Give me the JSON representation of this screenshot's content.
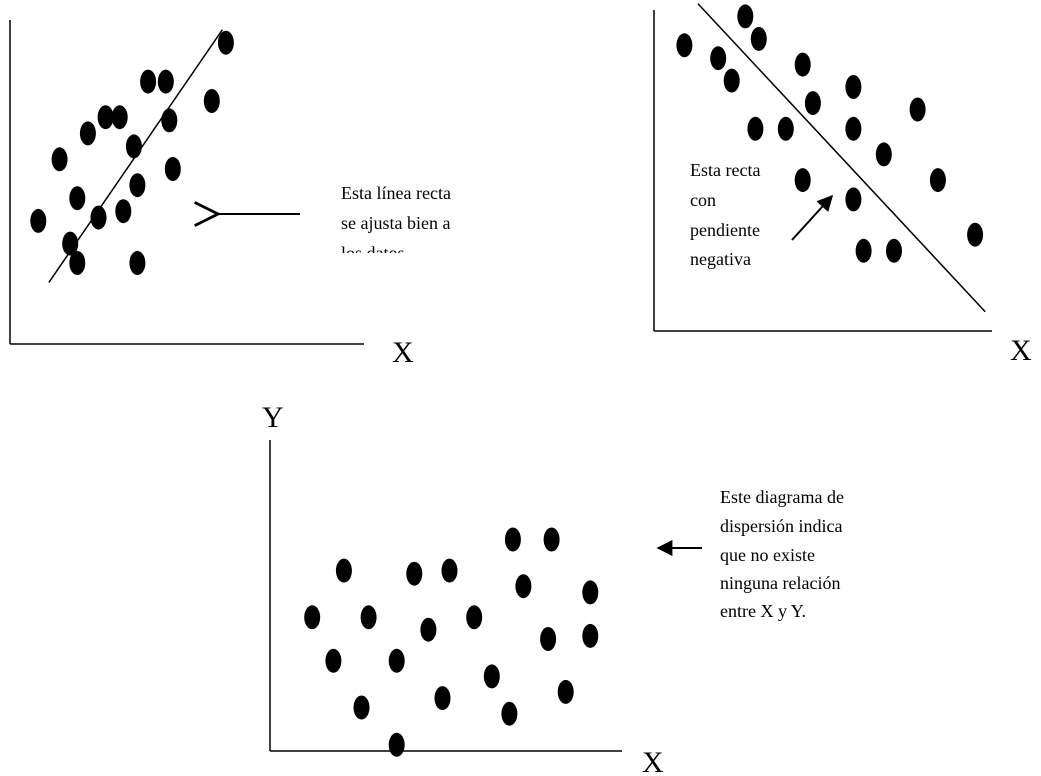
{
  "chart_data": [
    {
      "type": "scatter",
      "points": [
        [
          0.08,
          0.38
        ],
        [
          0.19,
          0.45
        ],
        [
          0.14,
          0.57
        ],
        [
          0.17,
          0.31
        ],
        [
          0.22,
          0.65
        ],
        [
          0.19,
          0.25
        ],
        [
          0.25,
          0.39
        ],
        [
          0.27,
          0.7
        ],
        [
          0.31,
          0.7
        ],
        [
          0.35,
          0.61
        ],
        [
          0.32,
          0.41
        ],
        [
          0.36,
          0.25
        ],
        [
          0.36,
          0.49
        ],
        [
          0.39,
          0.81
        ],
        [
          0.44,
          0.81
        ],
        [
          0.46,
          0.54
        ],
        [
          0.45,
          0.69
        ],
        [
          0.57,
          0.75
        ],
        [
          0.61,
          0.93
        ]
      ],
      "trend_line": {
        "start": [
          0.11,
          0.19
        ],
        "end": [
          0.6,
          0.97
        ]
      },
      "annotation": {
        "lines": [
          "Esta línea recta",
          "se ajusta bien a",
          "los datos"
        ]
      },
      "xlabel": "X",
      "ylabel": ""
    },
    {
      "type": "scatter",
      "points": [
        [
          0.09,
          0.89
        ],
        [
          0.19,
          0.85
        ],
        [
          0.27,
          0.98
        ],
        [
          0.31,
          0.91
        ],
        [
          0.23,
          0.78
        ],
        [
          0.3,
          0.63
        ],
        [
          0.39,
          0.63
        ],
        [
          0.44,
          0.83
        ],
        [
          0.47,
          0.71
        ],
        [
          0.59,
          0.76
        ],
        [
          0.59,
          0.63
        ],
        [
          0.68,
          0.55
        ],
        [
          0.78,
          0.69
        ],
        [
          0.84,
          0.47
        ],
        [
          0.44,
          0.47
        ],
        [
          0.59,
          0.41
        ],
        [
          0.62,
          0.25
        ],
        [
          0.71,
          0.25
        ],
        [
          0.95,
          0.3
        ]
      ],
      "trend_line": {
        "start": [
          0.13,
          1.02
        ],
        "end": [
          0.98,
          0.06
        ]
      },
      "annotation": {
        "lines": [
          "Esta recta",
          "con",
          "pendiente",
          "negativa"
        ]
      },
      "xlabel": "X",
      "ylabel": ""
    },
    {
      "type": "scatter",
      "points": [
        [
          0.21,
          0.58
        ],
        [
          0.41,
          0.57
        ],
        [
          0.51,
          0.58
        ],
        [
          0.69,
          0.68
        ],
        [
          0.8,
          0.68
        ],
        [
          0.72,
          0.53
        ],
        [
          0.91,
          0.51
        ],
        [
          0.12,
          0.43
        ],
        [
          0.28,
          0.43
        ],
        [
          0.45,
          0.39
        ],
        [
          0.58,
          0.43
        ],
        [
          0.79,
          0.36
        ],
        [
          0.91,
          0.37
        ],
        [
          0.18,
          0.29
        ],
        [
          0.36,
          0.29
        ],
        [
          0.63,
          0.24
        ],
        [
          0.26,
          0.14
        ],
        [
          0.49,
          0.17
        ],
        [
          0.68,
          0.12
        ],
        [
          0.84,
          0.19
        ],
        [
          0.36,
          0.02
        ]
      ],
      "annotation": {
        "lines": [
          "Este diagrama de",
          "dispersión indica",
          "que no existe",
          "ninguna relación",
          "entre X y Y."
        ]
      },
      "xlabel": "X",
      "ylabel": "Y"
    }
  ]
}
